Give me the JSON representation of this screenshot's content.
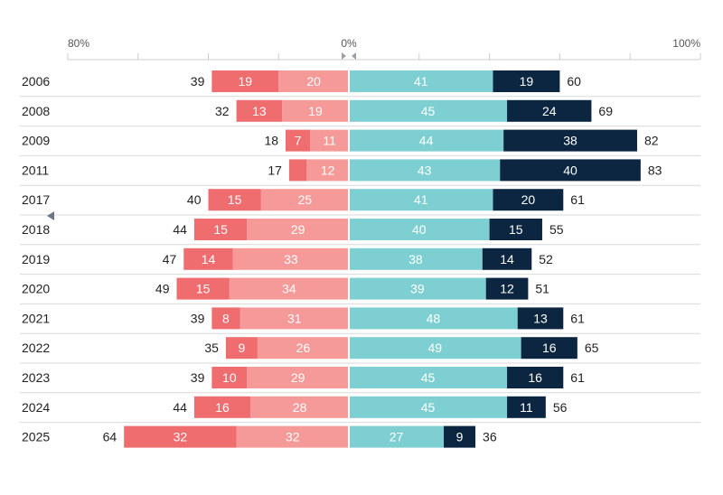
{
  "chart_data": {
    "type": "bar",
    "orientation": "horizontal-diverging",
    "axis": {
      "left_label": "80%",
      "center_label": "0%",
      "right_label": "100%",
      "left_max": 80,
      "right_max": 100,
      "tick_step": 20
    },
    "colors": {
      "neg_strong": "#ef6c6f",
      "neg_weak": "#f59a98",
      "pos_weak": "#7ecfd2",
      "pos_strong": "#0c2641",
      "grid": "#cccccc",
      "text_dark": "#222222",
      "text_light": "#ffffff",
      "marker": "#6b7785"
    },
    "series": [
      {
        "name": "negative-strong",
        "side": "left"
      },
      {
        "name": "negative-weak",
        "side": "left"
      },
      {
        "name": "positive-weak",
        "side": "right"
      },
      {
        "name": "positive-strong",
        "side": "right"
      }
    ],
    "rows": [
      {
        "year": "2006",
        "neg_total": "39",
        "neg_strong": 19,
        "neg_strong_label": "19",
        "neg_weak": 20,
        "neg_weak_label": "20",
        "pos_weak": 41,
        "pos_weak_label": "41",
        "pos_strong": 19,
        "pos_strong_label": "19",
        "pos_total": "60"
      },
      {
        "year": "2008",
        "neg_total": "32",
        "neg_strong": 13,
        "neg_strong_label": "13",
        "neg_weak": 19,
        "neg_weak_label": "19",
        "pos_weak": 45,
        "pos_weak_label": "45",
        "pos_strong": 24,
        "pos_strong_label": "24",
        "pos_total": "69"
      },
      {
        "year": "2009",
        "neg_total": "18",
        "neg_strong": 7,
        "neg_strong_label": "7",
        "neg_weak": 11,
        "neg_weak_label": "11",
        "pos_weak": 44,
        "pos_weak_label": "44",
        "pos_strong": 38,
        "pos_strong_label": "38",
        "pos_total": "82"
      },
      {
        "year": "2011",
        "neg_total": "17",
        "neg_strong": 5,
        "neg_strong_label": "",
        "neg_weak": 12,
        "neg_weak_label": "12",
        "pos_weak": 43,
        "pos_weak_label": "43",
        "pos_strong": 40,
        "pos_strong_label": "40",
        "pos_total": "83"
      },
      {
        "year": "2017",
        "neg_total": "40",
        "neg_strong": 15,
        "neg_strong_label": "15",
        "neg_weak": 25,
        "neg_weak_label": "25",
        "pos_weak": 41,
        "pos_weak_label": "41",
        "pos_strong": 20,
        "pos_strong_label": "20",
        "pos_total": "61"
      },
      {
        "year": "2018",
        "neg_total": "44",
        "neg_strong": 15,
        "neg_strong_label": "15",
        "neg_weak": 29,
        "neg_weak_label": "29",
        "pos_weak": 40,
        "pos_weak_label": "40",
        "pos_strong": 15,
        "pos_strong_label": "15",
        "pos_total": "55"
      },
      {
        "year": "2019",
        "neg_total": "47",
        "neg_strong": 14,
        "neg_strong_label": "14",
        "neg_weak": 33,
        "neg_weak_label": "33",
        "pos_weak": 38,
        "pos_weak_label": "38",
        "pos_strong": 14,
        "pos_strong_label": "14",
        "pos_total": "52"
      },
      {
        "year": "2020",
        "neg_total": "49",
        "neg_strong": 15,
        "neg_strong_label": "15",
        "neg_weak": 34,
        "neg_weak_label": "34",
        "pos_weak": 39,
        "pos_weak_label": "39",
        "pos_strong": 12,
        "pos_strong_label": "12",
        "pos_total": "51"
      },
      {
        "year": "2021",
        "neg_total": "39",
        "neg_strong": 8,
        "neg_strong_label": "8",
        "neg_weak": 31,
        "neg_weak_label": "31",
        "pos_weak": 48,
        "pos_weak_label": "48",
        "pos_strong": 13,
        "pos_strong_label": "13",
        "pos_total": "61"
      },
      {
        "year": "2022",
        "neg_total": "35",
        "neg_strong": 9,
        "neg_strong_label": "9",
        "neg_weak": 26,
        "neg_weak_label": "26",
        "pos_weak": 49,
        "pos_weak_label": "49",
        "pos_strong": 16,
        "pos_strong_label": "16",
        "pos_total": "65"
      },
      {
        "year": "2023",
        "neg_total": "39",
        "neg_strong": 10,
        "neg_strong_label": "10",
        "neg_weak": 29,
        "neg_weak_label": "29",
        "pos_weak": 45,
        "pos_weak_label": "45",
        "pos_strong": 16,
        "pos_strong_label": "16",
        "pos_total": "61"
      },
      {
        "year": "2024",
        "neg_total": "44",
        "neg_strong": 16,
        "neg_strong_label": "16",
        "neg_weak": 28,
        "neg_weak_label": "28",
        "pos_weak": 45,
        "pos_weak_label": "45",
        "pos_strong": 11,
        "pos_strong_label": "11",
        "pos_total": "56"
      },
      {
        "year": "2025",
        "neg_total": "64",
        "neg_strong": 32,
        "neg_strong_label": "32",
        "neg_weak": 32,
        "neg_weak_label": "32",
        "pos_weak": 27,
        "pos_weak_label": "27",
        "pos_strong": 9,
        "pos_strong_label": "9",
        "pos_total": "36"
      }
    ]
  }
}
